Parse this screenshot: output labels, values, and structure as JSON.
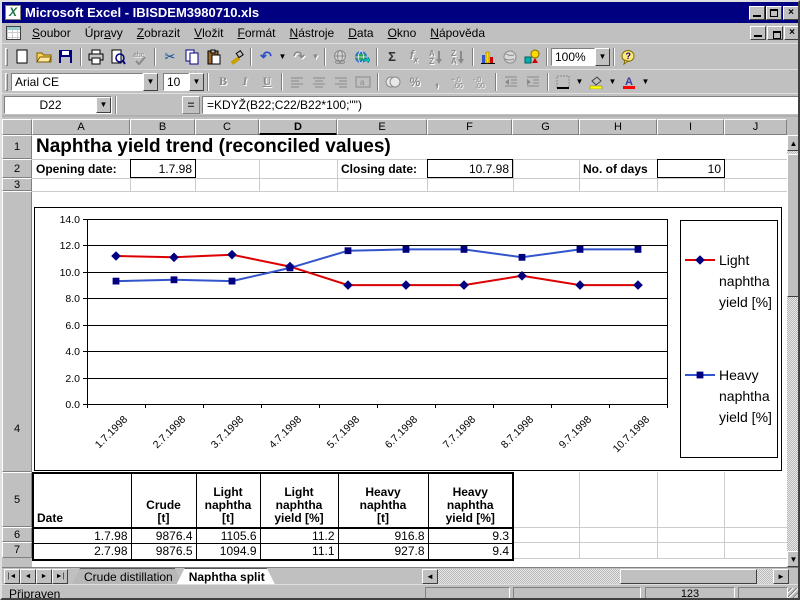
{
  "titlebar": {
    "title": "Microsoft Excel - IBISDEM3980710.xls"
  },
  "menubar": {
    "items": [
      {
        "label": "Soubor",
        "u": 0
      },
      {
        "label": "Úpravy",
        "u": 3
      },
      {
        "label": "Zobrazit",
        "u": 0
      },
      {
        "label": "Vložit",
        "u": 0
      },
      {
        "label": "Formát",
        "u": 0
      },
      {
        "label": "Nástroje",
        "u": 0
      },
      {
        "label": "Data",
        "u": 0
      },
      {
        "label": "Okno",
        "u": 0
      },
      {
        "label": "Nápověda",
        "u": 0
      }
    ]
  },
  "toolbar_standard": {
    "zoom_value": "100%"
  },
  "toolbar_formatting": {
    "font_name": "Arial CE",
    "font_size": "10"
  },
  "formula_bar": {
    "cell_ref": "D22",
    "formula": "=KDYŽ(B22;C22/B22*100;\"\")"
  },
  "grid": {
    "column_headers": [
      "A",
      "B",
      "C",
      "D",
      "E",
      "F",
      "G",
      "H",
      "I",
      "J"
    ],
    "active_column": "D",
    "row_headers": [
      "1",
      "2",
      "3",
      "4",
      "5",
      "6",
      "7"
    ],
    "cells": {
      "title": "Naphtha yield trend (reconciled values)",
      "opening_date_label": "Opening date:",
      "opening_date_value": "1.7.98",
      "closing_date_label": "Closing date:",
      "closing_date_value": "10.7.98",
      "days_label": "No. of days",
      "days_value": "10"
    }
  },
  "chart_data": {
    "type": "line",
    "title": "",
    "categories": [
      "1.7.1998",
      "2.7.1998",
      "3.7.1998",
      "4.7.1998",
      "5.7.1998",
      "6.7.1998",
      "7.7.1998",
      "8.7.1998",
      "9.7.1998",
      "10.7.1998"
    ],
    "series": [
      {
        "name": "Light naphtha yield [%]",
        "legend_lines": [
          "Light",
          "naphtha",
          "yield [%]"
        ],
        "line_color": "#dd0000",
        "marker": "diamond",
        "marker_color": "#000080",
        "values": [
          11.2,
          11.1,
          11.3,
          10.4,
          9.0,
          9.0,
          9.0,
          9.7,
          9.0,
          9.0
        ]
      },
      {
        "name": "Heavy naphtha yield [%]",
        "legend_lines": [
          "Heavy",
          "naphtha",
          "yield [%]"
        ],
        "line_color": "#3355cc",
        "marker": "square",
        "marker_color": "#000080",
        "values": [
          9.3,
          9.4,
          9.3,
          10.3,
          11.6,
          11.7,
          11.7,
          11.1,
          11.7,
          11.7
        ]
      }
    ],
    "ylim": [
      0,
      14
    ],
    "ytick_step": 2,
    "grid": true,
    "legend_position": "right"
  },
  "table": {
    "headers": [
      [
        "Date"
      ],
      [
        "Crude",
        "[t]"
      ],
      [
        "Light",
        "naphtha",
        "[t]"
      ],
      [
        "Light",
        "naphtha",
        "yield [%]"
      ],
      [
        "Heavy",
        "naphtha",
        "[t]"
      ],
      [
        "Heavy",
        "naphtha",
        "yield [%]"
      ]
    ],
    "rows": [
      [
        "1.7.98",
        "9876.4",
        "1105.6",
        "11.2",
        "916.8",
        "9.3"
      ],
      [
        "2.7.98",
        "9876.5",
        "1094.9",
        "11.1",
        "927.8",
        "9.4"
      ]
    ]
  },
  "sheet_tabs": {
    "tabs": [
      {
        "label": "Crude distillation",
        "active": false
      },
      {
        "label": "Naphtha split",
        "active": true
      }
    ]
  },
  "status_bar": {
    "message": "Připraven",
    "indicator": "123"
  },
  "icons": {
    "new-icon": "blank page",
    "open-icon": "folder",
    "save-icon": "floppy disk",
    "print-icon": "printer",
    "print-preview-icon": "page with magnifier",
    "spelling-icon": "abc check",
    "cut-icon": "✂",
    "copy-icon": "two pages",
    "paste-icon": "clipboard",
    "format-painter-icon": "brush",
    "undo-icon": "↶",
    "redo-icon": "↷",
    "insert-hyperlink-icon": "globe with chain",
    "web-toolbar-icon": "globe",
    "autosum-icon": "Σ",
    "paste-function-icon": "fx",
    "sort-ascending-icon": "A→Z down arrow",
    "sort-descending-icon": "Z→A down arrow",
    "chart-wizard-icon": "bar chart",
    "map-icon": "sphere",
    "drawing-icon": "shapes",
    "help-icon": "?",
    "bold-icon": "B",
    "italic-icon": "I",
    "underline-icon": "U",
    "align-left-icon": "lines left",
    "align-center-icon": "lines center",
    "align-right-icon": "lines right",
    "merge-center-icon": "merge cells",
    "currency-icon": "coins",
    "percent-icon": "%",
    "comma-icon": ",",
    "increase-decimal-icon": ".00+",
    "decrease-decimal-icon": ".00-",
    "decrease-indent-icon": "indent left",
    "increase-indent-icon": "indent right",
    "borders-icon": "border grid",
    "fill-color-icon": "paint bucket yellow",
    "font-color-icon": "A red",
    "minimize-icon": "_",
    "restore-icon": "❐",
    "close-icon": "×",
    "dropdown-icon": "▼",
    "scroll-up-icon": "▲",
    "scroll-down-icon": "▼",
    "scroll-left-icon": "◄",
    "scroll-right-icon": "►"
  }
}
